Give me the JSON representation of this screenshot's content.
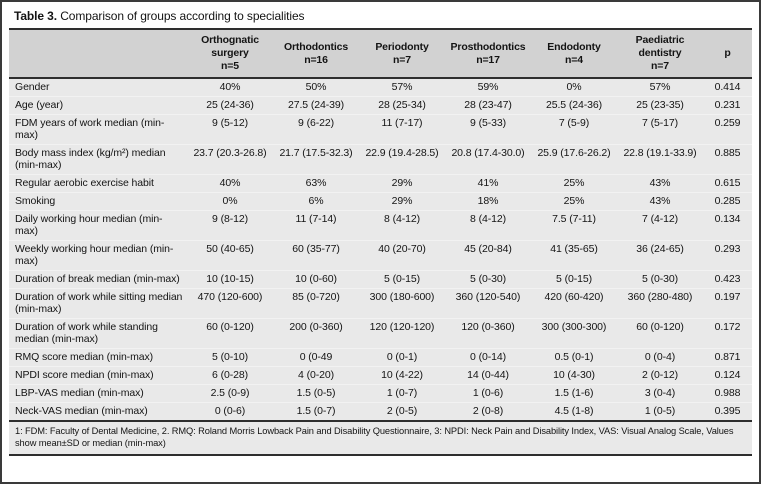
{
  "title": {
    "bold": "Table 3.",
    "rest": " Comparison of groups according to specialities"
  },
  "table": {
    "columns": [
      {
        "name": "Orthognatic surgery",
        "n": "n=5"
      },
      {
        "name": "Orthodontics",
        "n": "n=16"
      },
      {
        "name": "Periodonty",
        "n": "n=7"
      },
      {
        "name": "Prosthodontics",
        "n": "n=17"
      },
      {
        "name": "Endodonty",
        "n": "n=4"
      },
      {
        "name": "Paediatric dentistry",
        "n": "n=7"
      }
    ],
    "p_header": "p",
    "rows": [
      {
        "label": "Gender",
        "values": [
          "40%",
          "50%",
          "57%",
          "59%",
          "0%",
          "57%"
        ],
        "p": "0.414"
      },
      {
        "label": "Age (year)",
        "values": [
          "25 (24-36)",
          "27.5 (24-39)",
          "28 (25-34)",
          "28 (23-47)",
          "25.5 (24-36)",
          "25 (23-35)"
        ],
        "p": "0.231"
      },
      {
        "label": "FDM years of work median (min-max)",
        "values": [
          "9 (5-12)",
          "9 (6-22)",
          "11 (7-17)",
          "9 (5-33)",
          "7 (5-9)",
          "7 (5-17)"
        ],
        "p": "0.259"
      },
      {
        "label": "Body mass index (kg/m²) median (min-max)",
        "values": [
          "23.7 (20.3-26.8)",
          "21.7 (17.5-32.3)",
          "22.9 (19.4-28.5)",
          "20.8 (17.4-30.0)",
          "25.9 (17.6-26.2)",
          "22.8 (19.1-33.9)"
        ],
        "p": "0.885"
      },
      {
        "label": "Regular aerobic exercise habit",
        "values": [
          "40%",
          "63%",
          "29%",
          "41%",
          "25%",
          "43%"
        ],
        "p": "0.615"
      },
      {
        "label": "Smoking",
        "values": [
          "0%",
          "6%",
          "29%",
          "18%",
          "25%",
          "43%"
        ],
        "p": "0.285"
      },
      {
        "label": "Daily working hour median (min-max)",
        "values": [
          "9 (8-12)",
          "11 (7-14)",
          "8 (4-12)",
          "8 (4-12)",
          "7.5 (7-11)",
          "7 (4-12)"
        ],
        "p": "0.134"
      },
      {
        "label": "Weekly working hour median (min-max)",
        "values": [
          "50 (40-65)",
          "60 (35-77)",
          "40 (20-70)",
          "45 (20-84)",
          "41 (35-65)",
          "36 (24-65)"
        ],
        "p": "0.293"
      },
      {
        "label": "Duration of break median (min-max)",
        "values": [
          "10 (10-15)",
          "10 (0-60)",
          "5 (0-15)",
          "5 (0-30)",
          "5 (0-15)",
          "5 (0-30)"
        ],
        "p": "0.423"
      },
      {
        "label": "Duration of work while sitting median (min-max)",
        "values": [
          "470 (120-600)",
          "85 (0-720)",
          "300 (180-600)",
          "360 (120-540)",
          "420 (60-420)",
          "360 (280-480)"
        ],
        "p": "0.197"
      },
      {
        "label": "Duration of work while standing median (min-max)",
        "values": [
          "60 (0-120)",
          "200 (0-360)",
          "120 (120-120)",
          "120 (0-360)",
          "300 (300-300)",
          "60 (0-120)"
        ],
        "p": "0.172"
      },
      {
        "label": "RMQ score median (min-max)",
        "values": [
          "5 (0-10)",
          "0 (0-49",
          "0 (0-1)",
          "0 (0-14)",
          "0.5 (0-1)",
          "0 (0-4)"
        ],
        "p": "0.871"
      },
      {
        "label": "NPDI score median (min-max)",
        "values": [
          "6 (0-28)",
          "4 (0-20)",
          "10 (4-22)",
          "14 (0-44)",
          "10 (4-30)",
          "2 (0-12)"
        ],
        "p": "0.124"
      },
      {
        "label": "LBP-VAS median (min-max)",
        "values": [
          "2.5 (0-9)",
          "1.5 (0-5)",
          "1 (0-7)",
          "1 (0-6)",
          "1.5 (1-6)",
          "3 (0-4)"
        ],
        "p": "0.988"
      },
      {
        "label": "Neck-VAS median (min-max)",
        "values": [
          "0 (0-6)",
          "1.5 (0-7)",
          "2 (0-5)",
          "2 (0-8)",
          "4.5 (1-8)",
          "1 (0-5)"
        ],
        "p": "0.395"
      }
    ]
  },
  "footnote": "1: FDM: Faculty of Dental Medicine, 2. RMQ: Roland Morris Lowback Pain and Disability Questionnaire, 3: NPDI: Neck Pain and Disability Index, VAS: Visual Analog Scale, Values show mean±SD or median (min-max)",
  "colors": {
    "header_bg": "#d2d2d2",
    "body_bg": "#e9e9e9",
    "rule": "#2e2e2e",
    "border": "#3a3a3a"
  }
}
